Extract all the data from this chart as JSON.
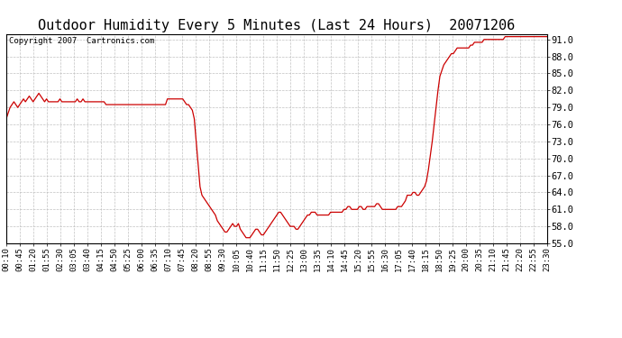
{
  "title": "Outdoor Humidity Every 5 Minutes (Last 24 Hours)  20071206",
  "copyright_text": "Copyright 2007  Cartronics.com",
  "ylim": [
    55.0,
    92.0
  ],
  "yticks": [
    55.0,
    58.0,
    61.0,
    64.0,
    67.0,
    70.0,
    73.0,
    76.0,
    79.0,
    82.0,
    85.0,
    88.0,
    91.0
  ],
  "line_color": "#cc0000",
  "bg_color": "#ffffff",
  "grid_color": "#bbbbbb",
  "title_fontsize": 11,
  "annotation_fontsize": 6.5,
  "tick_fontsize": 6.5,
  "ytick_fontsize": 7.5,
  "x_tick_labels": [
    "00:10",
    "00:45",
    "01:20",
    "01:55",
    "02:30",
    "03:05",
    "03:40",
    "04:15",
    "04:50",
    "05:25",
    "06:00",
    "06:35",
    "07:10",
    "07:45",
    "08:20",
    "08:55",
    "09:30",
    "10:05",
    "10:40",
    "11:15",
    "11:50",
    "12:25",
    "13:00",
    "13:35",
    "14:10",
    "14:45",
    "15:20",
    "15:55",
    "16:30",
    "17:05",
    "17:40",
    "18:15",
    "18:50",
    "19:25",
    "20:00",
    "20:35",
    "21:10",
    "21:45",
    "22:20",
    "22:55",
    "23:30"
  ],
  "humidity_values": [
    77.0,
    78.0,
    79.0,
    79.5,
    80.0,
    79.5,
    79.0,
    79.5,
    80.0,
    80.5,
    80.0,
    80.5,
    81.0,
    80.5,
    80.0,
    80.5,
    81.0,
    81.5,
    81.0,
    80.5,
    80.0,
    80.5,
    80.0,
    80.0,
    80.0,
    80.0,
    80.0,
    80.0,
    80.5,
    80.0,
    80.0,
    80.0,
    80.0,
    80.0,
    80.0,
    80.0,
    80.0,
    80.5,
    80.0,
    80.0,
    80.5,
    80.0,
    80.0,
    80.0,
    80.0,
    80.0,
    80.0,
    80.0,
    80.0,
    80.0,
    80.0,
    80.0,
    79.5,
    79.5,
    79.5,
    79.5,
    79.5,
    79.5,
    79.5,
    79.5,
    79.5,
    79.5,
    79.5,
    79.5,
    79.5,
    79.5,
    79.5,
    79.5,
    79.5,
    79.5,
    79.5,
    79.5,
    79.5,
    79.5,
    79.5,
    79.5,
    79.5,
    79.5,
    79.5,
    79.5,
    79.5,
    79.5,
    79.5,
    79.5,
    80.5,
    80.5,
    80.5,
    80.5,
    80.5,
    80.5,
    80.5,
    80.5,
    80.5,
    80.0,
    79.5,
    79.5,
    79.0,
    78.5,
    77.0,
    73.0,
    69.0,
    65.0,
    63.5,
    63.0,
    62.5,
    62.0,
    61.5,
    61.0,
    60.5,
    60.0,
    59.0,
    58.5,
    58.0,
    57.5,
    57.0,
    57.0,
    57.5,
    58.0,
    58.5,
    58.0,
    58.0,
    58.5,
    57.5,
    57.0,
    56.5,
    56.0,
    56.0,
    56.0,
    56.5,
    57.0,
    57.5,
    57.5,
    57.0,
    56.5,
    56.5,
    57.0,
    57.5,
    58.0,
    58.5,
    59.0,
    59.5,
    60.0,
    60.5,
    60.5,
    60.0,
    59.5,
    59.0,
    58.5,
    58.0,
    58.0,
    58.0,
    57.5,
    57.5,
    58.0,
    58.5,
    59.0,
    59.5,
    60.0,
    60.0,
    60.5,
    60.5,
    60.5,
    60.0,
    60.0,
    60.0,
    60.0,
    60.0,
    60.0,
    60.0,
    60.5,
    60.5,
    60.5,
    60.5,
    60.5,
    60.5,
    60.5,
    61.0,
    61.0,
    61.5,
    61.5,
    61.0,
    61.0,
    61.0,
    61.0,
    61.5,
    61.5,
    61.0,
    61.0,
    61.5,
    61.5,
    61.5,
    61.5,
    61.5,
    62.0,
    62.0,
    61.5,
    61.0,
    61.0,
    61.0,
    61.0,
    61.0,
    61.0,
    61.0,
    61.0,
    61.5,
    61.5,
    61.5,
    62.0,
    62.5,
    63.5,
    63.5,
    63.5,
    64.0,
    64.0,
    63.5,
    63.5,
    64.0,
    64.5,
    65.0,
    66.0,
    68.0,
    70.5,
    73.0,
    76.0,
    79.0,
    82.0,
    84.5,
    85.5,
    86.5,
    87.0,
    87.5,
    88.0,
    88.5,
    88.5,
    89.0,
    89.5,
    89.5,
    89.5,
    89.5,
    89.5,
    89.5,
    89.5,
    90.0,
    90.0,
    90.5,
    90.5,
    90.5,
    90.5,
    90.5,
    91.0,
    91.0,
    91.0,
    91.0,
    91.0,
    91.0,
    91.0,
    91.0,
    91.0,
    91.0,
    91.0,
    91.5,
    91.5,
    91.5,
    91.5,
    91.5,
    91.5,
    91.5,
    91.5,
    91.5,
    91.5,
    91.5,
    91.5,
    91.5,
    91.5,
    91.5,
    91.5,
    91.5,
    91.5,
    91.5,
    91.5,
    91.5,
    91.5,
    91.5
  ]
}
